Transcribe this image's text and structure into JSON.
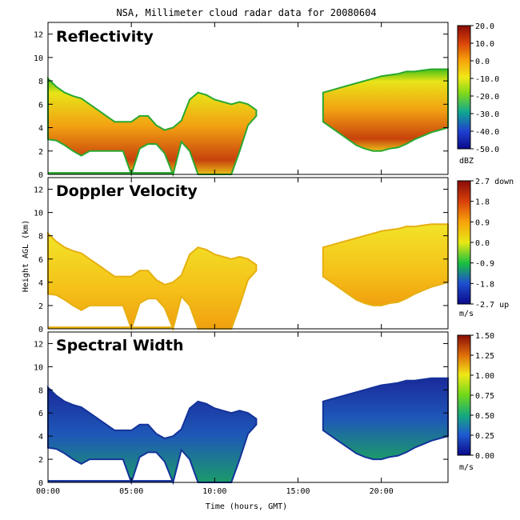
{
  "chart_data": [
    {
      "type": "heatmap",
      "title": "NSA, Millimeter cloud radar data for 20080604",
      "panel_title": "Reflectivity",
      "xlabel": "Time (hours, GMT)",
      "ylabel": "Height AGL (km)",
      "xlim": [
        0,
        24
      ],
      "ylim": [
        0,
        13
      ],
      "x_ticks": [
        "00:00",
        "05:00",
        "10:00",
        "15:00",
        "20:00"
      ],
      "y_ticks": [
        "0",
        "2",
        "4",
        "6",
        "8",
        "10",
        "12"
      ],
      "colorbar": {
        "unit": "dBZ",
        "min": -50,
        "max": 20,
        "ticks": [
          "20.0",
          "10.0",
          "0.0",
          "-10.0",
          "-20.0",
          "-30.0",
          "-40.0",
          "-50.0"
        ]
      }
    },
    {
      "type": "heatmap",
      "panel_title": "Doppler Velocity",
      "xlabel": "Time (hours, GMT)",
      "ylabel": "Height AGL (km)",
      "xlim": [
        0,
        24
      ],
      "ylim": [
        0,
        13
      ],
      "x_ticks": [
        "00:00",
        "05:00",
        "10:00",
        "15:00",
        "20:00"
      ],
      "y_ticks": [
        "0",
        "2",
        "4",
        "6",
        "8",
        "10",
        "12"
      ],
      "colorbar": {
        "unit": "m/s",
        "min": -2.7,
        "max": 2.7,
        "ticks": [
          "2.7 down",
          "1.8",
          "0.9",
          "0.0",
          "-0.9",
          "-1.8",
          "-2.7 up"
        ]
      }
    },
    {
      "type": "heatmap",
      "panel_title": "Spectral Width",
      "xlabel": "Time (hours, GMT)",
      "ylabel": "Height AGL (km)",
      "xlim": [
        0,
        24
      ],
      "ylim": [
        0,
        13
      ],
      "x_ticks": [
        "00:00",
        "05:00",
        "10:00",
        "15:00",
        "20:00"
      ],
      "y_ticks": [
        "0",
        "2",
        "4",
        "6",
        "8",
        "10",
        "12"
      ],
      "colorbar": {
        "unit": "m/s",
        "min": 0,
        "max": 1.5,
        "ticks": [
          "1.50",
          "1.25",
          "1.00",
          "0.75",
          "0.50",
          "0.25",
          "0.00"
        ]
      }
    }
  ],
  "cloud_field": {
    "time_hours": [
      0,
      0.5,
      1,
      1.5,
      2,
      2.5,
      3,
      3.5,
      4,
      4.5,
      5,
      5.5,
      6,
      6.5,
      7,
      7.5,
      8,
      8.5,
      9,
      9.5,
      10,
      10.5,
      11,
      11.5,
      12,
      12.5,
      13,
      13.5,
      14,
      14.5,
      15,
      15.5,
      16,
      16.5,
      17,
      17.5,
      18,
      18.5,
      19,
      19.5,
      20,
      20.5,
      21,
      21.5,
      22,
      22.5,
      23,
      23.5,
      24
    ],
    "base_km": [
      3.0,
      2.9,
      2.5,
      2.0,
      1.6,
      2.0,
      2.0,
      2.0,
      2.0,
      2.0,
      0.0,
      2.2,
      2.6,
      2.6,
      1.8,
      0.0,
      2.8,
      2.0,
      0.0,
      0.0,
      0.0,
      0.0,
      0.0,
      2.0,
      4.2,
      5.0,
      null,
      null,
      null,
      null,
      null,
      null,
      null,
      4.5,
      4.0,
      3.5,
      3.0,
      2.5,
      2.2,
      2.0,
      2.0,
      2.2,
      2.3,
      2.6,
      3.0,
      3.3,
      3.6,
      3.8,
      4.0
    ],
    "top_km": [
      8.2,
      7.5,
      7.0,
      6.7,
      6.5,
      6.0,
      5.5,
      5.0,
      4.5,
      4.5,
      4.5,
      5.0,
      5.0,
      4.2,
      3.8,
      4.0,
      4.6,
      6.4,
      7.0,
      6.8,
      6.4,
      6.2,
      6.0,
      6.2,
      6.0,
      5.5,
      null,
      null,
      null,
      null,
      null,
      null,
      null,
      7.0,
      7.2,
      7.4,
      7.6,
      7.8,
      8.0,
      8.2,
      8.4,
      8.5,
      8.6,
      8.8,
      8.8,
      8.9,
      9.0,
      9.0,
      9.0
    ],
    "surface_layer_km": 0.2
  }
}
